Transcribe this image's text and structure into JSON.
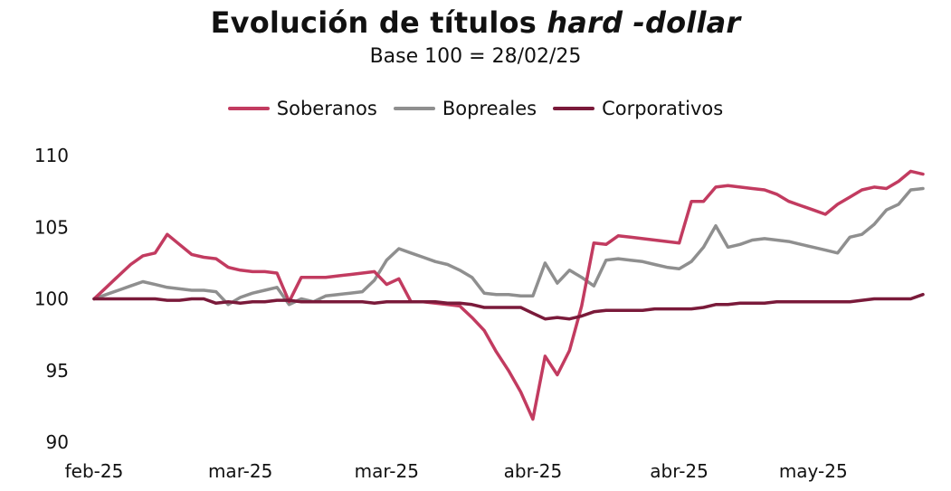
{
  "chart_data": {
    "type": "line",
    "title_main": "Evolución de títulos",
    "title_emph": "hard -dollar",
    "subtitle": "Base 100 = 28/02/25",
    "xlabel": "",
    "ylabel": "",
    "ylim": [
      90,
      110
    ],
    "yticks": [
      "90",
      "95",
      "100",
      "105",
      "110"
    ],
    "xtick_labels": [
      "feb-25",
      "mar-25",
      "mar-25",
      "abr-25",
      "abr-25",
      "may-25"
    ],
    "xtick_positions": [
      0,
      12,
      24,
      36,
      48,
      59
    ],
    "x_count": 69,
    "grid": false,
    "legend_position": "top-center",
    "series": [
      {
        "name": "Soberanos",
        "color": "#c23b60",
        "values": [
          100.0,
          100.8,
          101.6,
          102.4,
          103.0,
          103.2,
          104.5,
          103.8,
          103.1,
          102.9,
          102.8,
          102.2,
          102.0,
          101.9,
          101.9,
          101.8,
          99.8,
          101.5,
          101.5,
          101.5,
          101.6,
          101.7,
          101.8,
          101.9,
          101.0,
          101.4,
          99.8,
          99.8,
          99.7,
          99.6,
          99.5,
          98.7,
          97.8,
          96.3,
          95.0,
          93.5,
          91.6,
          96.0,
          94.7,
          96.4,
          99.5,
          103.9,
          103.8,
          104.4,
          104.3,
          104.2,
          104.1,
          104.0,
          103.9,
          106.8,
          106.8,
          107.8,
          107.9,
          107.8,
          107.7,
          107.6,
          107.3,
          106.8,
          106.5,
          106.2,
          105.9,
          106.6,
          107.1,
          107.6,
          107.8,
          107.7,
          108.2,
          108.9,
          108.7
        ]
      },
      {
        "name": "Bopreales",
        "color": "#8f8f8f",
        "values": [
          100.0,
          100.3,
          100.6,
          100.9,
          101.2,
          101.0,
          100.8,
          100.7,
          100.6,
          100.6,
          100.5,
          99.6,
          100.1,
          100.4,
          100.6,
          100.8,
          99.6,
          100.0,
          99.8,
          100.2,
          100.3,
          100.4,
          100.5,
          101.3,
          102.7,
          103.5,
          103.2,
          102.9,
          102.6,
          102.4,
          102.0,
          101.5,
          100.4,
          100.3,
          100.3,
          100.2,
          100.2,
          102.5,
          101.1,
          102.0,
          101.5,
          100.9,
          102.7,
          102.8,
          102.7,
          102.6,
          102.4,
          102.2,
          102.1,
          102.6,
          103.6,
          105.1,
          103.6,
          103.8,
          104.1,
          104.2,
          104.1,
          104.0,
          103.8,
          103.6,
          103.4,
          103.2,
          104.3,
          104.5,
          105.2,
          106.2,
          106.6,
          107.6,
          107.7
        ]
      },
      {
        "name": "Corporativos",
        "color": "#7a1a3a",
        "values": [
          100.0,
          100.0,
          100.0,
          100.0,
          100.0,
          100.0,
          99.9,
          99.9,
          100.0,
          100.0,
          99.7,
          99.8,
          99.7,
          99.8,
          99.8,
          99.9,
          99.9,
          99.8,
          99.8,
          99.8,
          99.8,
          99.8,
          99.8,
          99.7,
          99.8,
          99.8,
          99.8,
          99.8,
          99.8,
          99.7,
          99.7,
          99.6,
          99.4,
          99.4,
          99.4,
          99.4,
          99.0,
          98.6,
          98.7,
          98.6,
          98.8,
          99.1,
          99.2,
          99.2,
          99.2,
          99.2,
          99.3,
          99.3,
          99.3,
          99.3,
          99.4,
          99.6,
          99.6,
          99.7,
          99.7,
          99.7,
          99.8,
          99.8,
          99.8,
          99.8,
          99.8,
          99.8,
          99.8,
          99.9,
          100.0,
          100.0,
          100.0,
          100.0,
          100.3
        ]
      }
    ]
  }
}
